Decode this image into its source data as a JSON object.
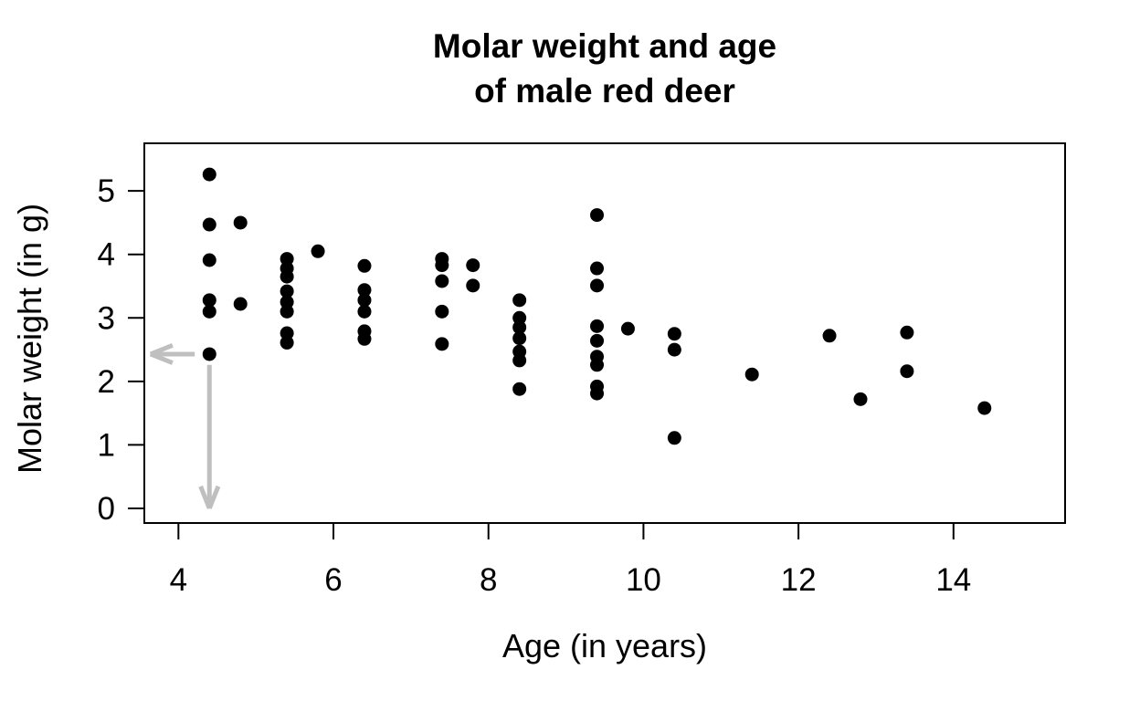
{
  "chart_data": {
    "type": "scatter",
    "title_lines": [
      "Molar weight and age",
      "of male red deer"
    ],
    "xlabel": "Age (in years)",
    "ylabel": "Molar weight (in g)",
    "x_ticks": [
      4,
      6,
      8,
      10,
      12,
      14
    ],
    "y_ticks": [
      0,
      1,
      2,
      3,
      4,
      5
    ],
    "xlim": [
      3.56,
      15.44
    ],
    "ylim": [
      -0.23,
      5.75
    ],
    "grid": "off",
    "legend": "none",
    "point_color": "#000000",
    "axis_color": "#000000",
    "background_color": "#ffffff",
    "annotation_color": "#bfbfbf",
    "annotations": {
      "highlighted_point": {
        "x": 4.4,
        "y": 2.43
      },
      "arrows": [
        {
          "name": "arrow-to-y-axis",
          "x1": 4.21,
          "y1": 2.43,
          "x2": 3.64,
          "y2": 2.43
        },
        {
          "name": "arrow-to-x-axis",
          "x1": 4.4,
          "y1": 2.26,
          "x2": 4.4,
          "y2": 0.0
        }
      ]
    },
    "points": [
      [
        4.4,
        5.26
      ],
      [
        4.4,
        4.47
      ],
      [
        4.4,
        3.91
      ],
      [
        4.4,
        3.28
      ],
      [
        4.4,
        3.1
      ],
      [
        4.4,
        2.43
      ],
      [
        4.8,
        4.5
      ],
      [
        4.8,
        3.22
      ],
      [
        5.4,
        3.93
      ],
      [
        5.4,
        3.78
      ],
      [
        5.4,
        3.65
      ],
      [
        5.4,
        3.42
      ],
      [
        5.4,
        3.25
      ],
      [
        5.4,
        3.1
      ],
      [
        5.4,
        2.76
      ],
      [
        5.4,
        2.61
      ],
      [
        5.8,
        4.05
      ],
      [
        6.4,
        3.82
      ],
      [
        6.4,
        3.44
      ],
      [
        6.4,
        3.28
      ],
      [
        6.4,
        3.1
      ],
      [
        6.4,
        2.79
      ],
      [
        6.4,
        2.67
      ],
      [
        7.4,
        3.93
      ],
      [
        7.4,
        3.83
      ],
      [
        7.4,
        3.58
      ],
      [
        7.4,
        3.1
      ],
      [
        7.4,
        2.59
      ],
      [
        7.8,
        3.83
      ],
      [
        7.8,
        3.51
      ],
      [
        8.4,
        3.28
      ],
      [
        8.4,
        3.0
      ],
      [
        8.4,
        2.85
      ],
      [
        8.4,
        2.68
      ],
      [
        8.4,
        2.47
      ],
      [
        8.4,
        2.33
      ],
      [
        8.4,
        1.88
      ],
      [
        9.4,
        4.62
      ],
      [
        9.4,
        3.78
      ],
      [
        9.4,
        3.51
      ],
      [
        9.4,
        2.87
      ],
      [
        9.4,
        2.64
      ],
      [
        9.4,
        2.39
      ],
      [
        9.4,
        2.26
      ],
      [
        9.4,
        1.92
      ],
      [
        9.4,
        1.81
      ],
      [
        9.8,
        2.83
      ],
      [
        10.4,
        2.75
      ],
      [
        10.4,
        2.5
      ],
      [
        10.4,
        1.11
      ],
      [
        11.4,
        2.11
      ],
      [
        12.4,
        2.72
      ],
      [
        12.8,
        1.72
      ],
      [
        13.4,
        2.77
      ],
      [
        13.4,
        2.16
      ],
      [
        14.4,
        1.58
      ]
    ]
  }
}
